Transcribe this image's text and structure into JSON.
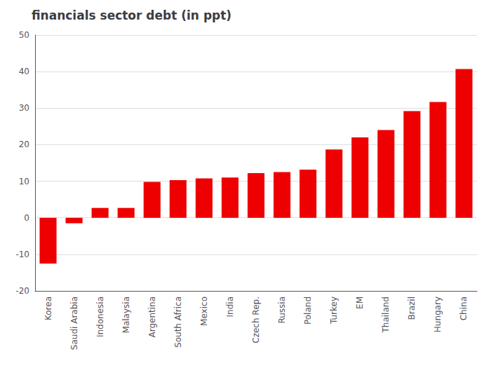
{
  "chart_data": {
    "type": "bar",
    "title": "financials sector debt (in ppt)",
    "categories": [
      "Korea",
      "Saudi Arabia",
      "Indonesia",
      "Malaysia",
      "Argentina",
      "South Africa",
      "Mexico",
      "India",
      "Czech Rep.",
      "Russia",
      "Poland",
      "Turkey",
      "EM",
      "Thailand",
      "Brazil",
      "Hungary",
      "China"
    ],
    "values": [
      -12.5,
      -1.5,
      2.7,
      2.7,
      9.8,
      10.3,
      10.8,
      11.0,
      12.2,
      12.5,
      13.2,
      18.7,
      22.0,
      24.0,
      29.2,
      31.7,
      40.7
    ],
    "color": "#ee0000",
    "ylim": [
      -20,
      50
    ],
    "yticks": [
      -20,
      -10,
      0,
      10,
      20,
      30,
      40,
      50
    ],
    "grid": true
  }
}
